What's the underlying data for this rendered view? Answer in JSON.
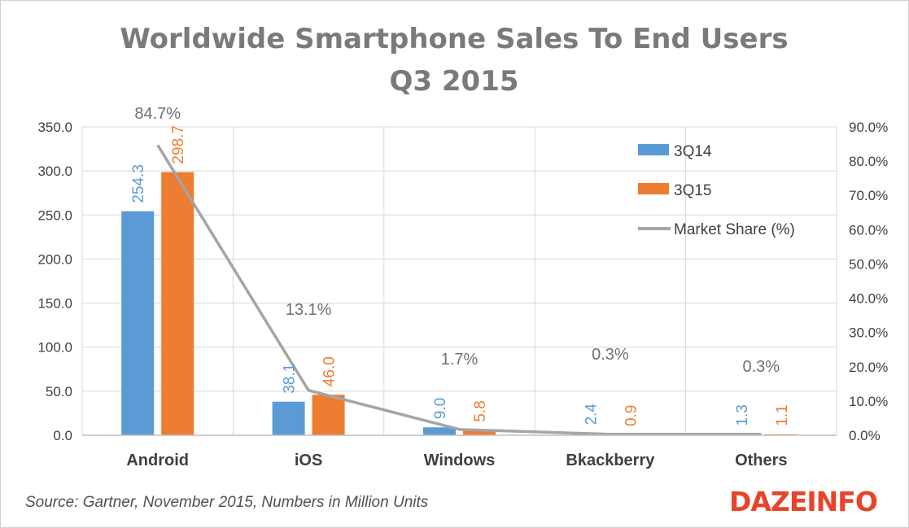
{
  "chart_data": {
    "type": "bar",
    "title": "Worldwide Smartphone Sales To End Users",
    "subtitle": "Q3 2015",
    "categories": [
      "Android",
      "iOS",
      "Windows",
      "Bkackberry",
      "Others"
    ],
    "series": [
      {
        "name": "3Q14",
        "type": "bar",
        "axis": "left",
        "color": "#5b9bd5",
        "values": [
          254.3,
          38.1,
          9.0,
          2.4,
          1.3
        ],
        "labels": [
          "254.3",
          "38.1",
          "9.0",
          "2.4",
          "1.3"
        ]
      },
      {
        "name": "3Q15",
        "type": "bar",
        "axis": "left",
        "color": "#ed7d31",
        "values": [
          298.7,
          46.0,
          5.8,
          0.9,
          1.1
        ],
        "labels": [
          "298.7",
          "46.0",
          "5.8",
          "0.9",
          "1.1"
        ]
      },
      {
        "name": "Market Share (%)",
        "type": "line",
        "axis": "right",
        "color": "#a5a5a5",
        "values": [
          84.7,
          13.1,
          1.7,
          0.3,
          0.3
        ],
        "labels": [
          "84.7%",
          "13.1%",
          "1.7%",
          "0.3%",
          "0.3%"
        ]
      }
    ],
    "yleft": {
      "min": 0,
      "max": 350,
      "ticks": [
        "0.0",
        "50.0",
        "100.0",
        "150.0",
        "200.0",
        "250.0",
        "300.0",
        "350.0"
      ]
    },
    "yright": {
      "min": 0,
      "max": 90,
      "ticks": [
        "0.0%",
        "10.0%",
        "20.0%",
        "30.0%",
        "40.0%",
        "50.0%",
        "60.0%",
        "70.0%",
        "80.0%",
        "90.0%"
      ]
    },
    "grid": true,
    "legend": "top-right"
  },
  "source": "Source: Gartner, November 2015, Numbers in Million Units",
  "logo": "DAZEINFO"
}
